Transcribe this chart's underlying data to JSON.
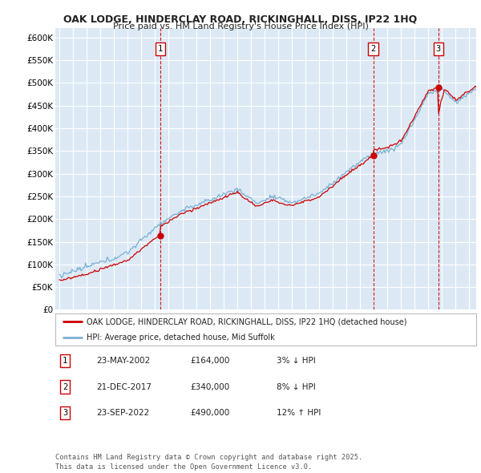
{
  "title": "OAK LODGE, HINDERCLAY ROAD, RICKINGHALL, DISS, IP22 1HQ",
  "subtitle": "Price paid vs. HM Land Registry's House Price Index (HPI)",
  "background_color": "#ffffff",
  "plot_bg_color": "#dce9f5",
  "grid_color": "#ffffff",
  "ylim": [
    0,
    620000
  ],
  "yticks": [
    0,
    50000,
    100000,
    150000,
    200000,
    250000,
    300000,
    350000,
    400000,
    450000,
    500000,
    550000,
    600000
  ],
  "ytick_labels": [
    "£0",
    "£50K",
    "£100K",
    "£150K",
    "£200K",
    "£250K",
    "£300K",
    "£350K",
    "£400K",
    "£450K",
    "£500K",
    "£550K",
    "£600K"
  ],
  "sale_dates_num": [
    2002.39,
    2017.97,
    2022.73
  ],
  "sale_prices": [
    164000,
    340000,
    490000
  ],
  "sale_labels": [
    "1",
    "2",
    "3"
  ],
  "legend_entries": [
    "OAK LODGE, HINDERCLAY ROAD, RICKINGHALL, DISS, IP22 1HQ (detached house)",
    "HPI: Average price, detached house, Mid Suffolk"
  ],
  "legend_colors": [
    "#cc0000",
    "#7ab0d4"
  ],
  "footer_text": "Contains HM Land Registry data © Crown copyright and database right 2025.\nThis data is licensed under the Open Government Licence v3.0.",
  "table_rows": [
    [
      "1",
      "23-MAY-2002",
      "£164,000",
      "3% ↓ HPI"
    ],
    [
      "2",
      "21-DEC-2017",
      "£340,000",
      "8% ↓ HPI"
    ],
    [
      "3",
      "23-SEP-2022",
      "£490,000",
      "12% ↑ HPI"
    ]
  ],
  "red_line_color": "#cc0000",
  "blue_line_color": "#7ab0d4",
  "sale_vline_color": "#cc0000",
  "xlim": [
    1994.7,
    2025.5
  ]
}
